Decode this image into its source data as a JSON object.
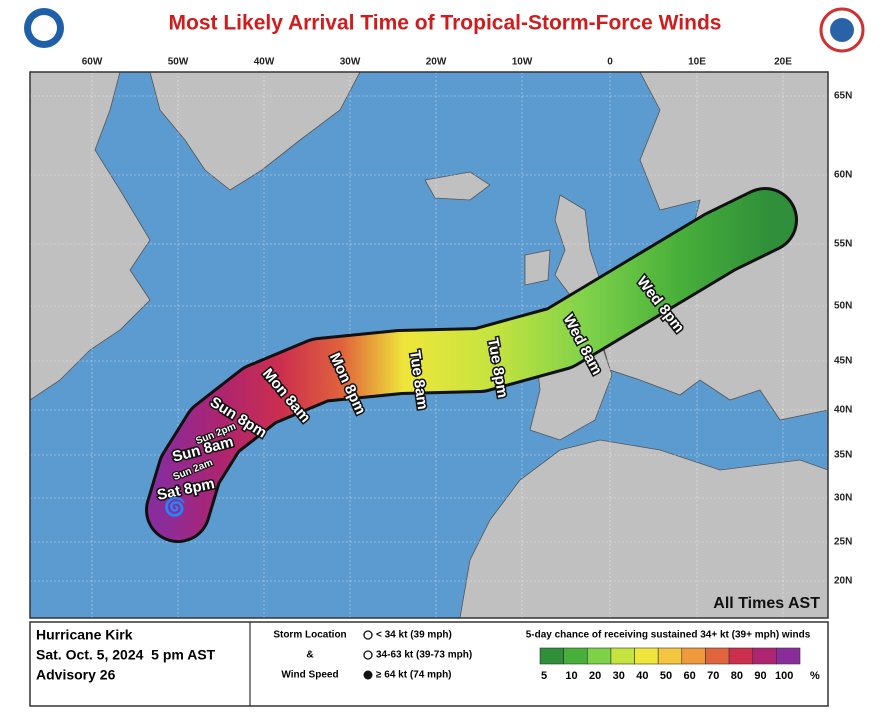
{
  "title": "Most Likely Arrival Time of Tropical-Storm-Force Winds",
  "map": {
    "longitude_labels": [
      "60W",
      "50W",
      "40W",
      "30W",
      "20W",
      "10W",
      "0",
      "10E",
      "20E"
    ],
    "latitude_labels": [
      "65N",
      "60N",
      "55N",
      "50N",
      "45N",
      "40N",
      "35N",
      "30N",
      "25N",
      "20N"
    ],
    "time_labels": [
      "Sat 8pm",
      "Sun 2am",
      "Sun 8am",
      "Sun 2pm",
      "Sun 8pm",
      "Mon 8am",
      "Mon 8pm",
      "Tue 8am",
      "Tue 8pm",
      "Wed 8am",
      "Wed 8pm"
    ],
    "note": "All Times AST"
  },
  "info": {
    "storm": "Hurricane Kirk",
    "date": "Sat. Oct. 5, 2024  5 pm AST",
    "advisory": "Advisory 26"
  },
  "legend": {
    "title_lines": [
      "Storm Location",
      "&",
      "Wind Speed"
    ],
    "entries": [
      "< 34 kt (39 mph)",
      "34-63 kt (39-73 mph)",
      "≥ 64 kt (74 mph)"
    ],
    "scale_title": "5-day chance of receiving sustained 34+ kt (39+ mph) winds",
    "scale": [
      {
        "label": "5",
        "color": "#2f8f3a"
      },
      {
        "label": "10",
        "color": "#48b03a"
      },
      {
        "label": "20",
        "color": "#7ed24a"
      },
      {
        "label": "30",
        "color": "#c4e33f"
      },
      {
        "label": "40",
        "color": "#eee63a"
      },
      {
        "label": "50",
        "color": "#f4c640"
      },
      {
        "label": "60",
        "color": "#f09a3e"
      },
      {
        "label": "70",
        "color": "#e0643c"
      },
      {
        "label": "80",
        "color": "#cc2f4e"
      },
      {
        "label": "90",
        "color": "#ad2470"
      },
      {
        "label": "100",
        "color": "#8a2c9c"
      }
    ],
    "unit": "%"
  }
}
